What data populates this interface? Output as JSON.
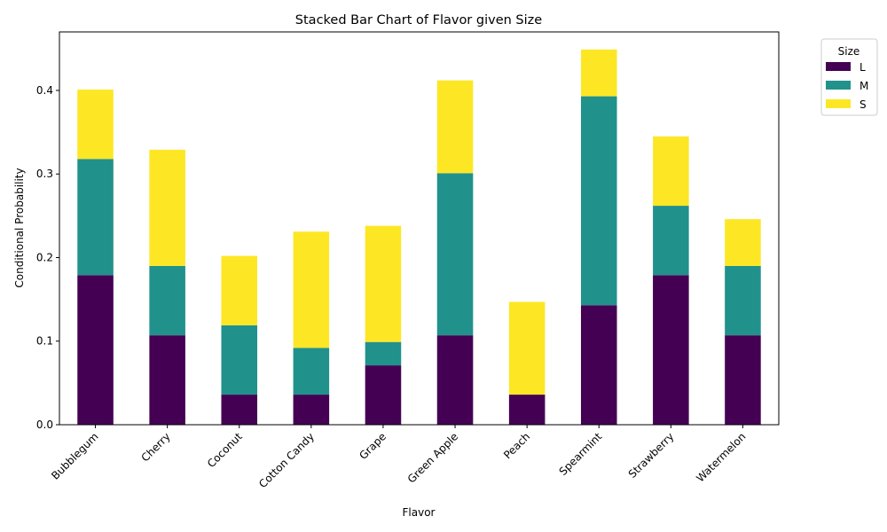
{
  "chart_data": {
    "type": "bar",
    "stacked": true,
    "title": "Stacked Bar Chart of Flavor given Size",
    "xlabel": "Flavor",
    "ylabel": "Conditional Probability",
    "categories": [
      "Bubblegum",
      "Cherry",
      "Coconut",
      "Cotton Candy",
      "Grape",
      "Green Apple",
      "Peach",
      "Spearmint",
      "Strawberry",
      "Watermelon"
    ],
    "series": [
      {
        "name": "L",
        "color": "#440154",
        "values": [
          0.179,
          0.107,
          0.036,
          0.036,
          0.071,
          0.107,
          0.036,
          0.143,
          0.179,
          0.107
        ]
      },
      {
        "name": "M",
        "color": "#21918c",
        "values": [
          0.139,
          0.083,
          0.083,
          0.056,
          0.028,
          0.194,
          0.0,
          0.25,
          0.083,
          0.083
        ]
      },
      {
        "name": "S",
        "color": "#fde725",
        "values": [
          0.083,
          0.139,
          0.083,
          0.139,
          0.139,
          0.111,
          0.111,
          0.056,
          0.083,
          0.056
        ]
      }
    ],
    "ylim": [
      0,
      0.47
    ],
    "yticks": [
      "0.0",
      "0.1",
      "0.2",
      "0.3",
      "0.4"
    ],
    "grid": false,
    "legend": {
      "title": "Size",
      "position": "outside-right"
    }
  }
}
